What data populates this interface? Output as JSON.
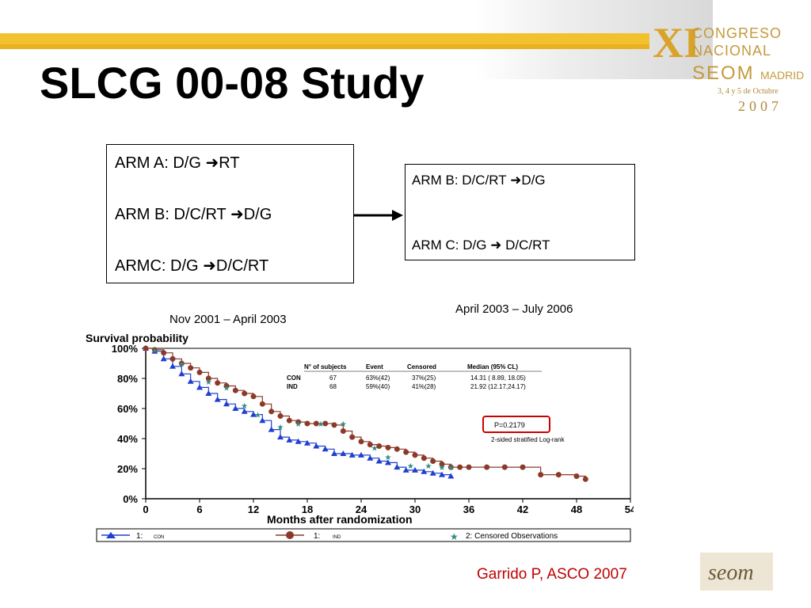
{
  "slide": {
    "title": "SLCG 00-08 Study",
    "citation": "Garrido P, ASCO  2007",
    "congress_logo": {
      "numeral": "XI",
      "line1": "CONGRESO",
      "line2": "NACIONAL",
      "line3": "SEOM",
      "line3b": "MADRID",
      "line4": "3, 4 y 5 de Octubre",
      "line5": "2007"
    },
    "seom_logo": "seom"
  },
  "arms_box1": {
    "arm_a": "ARM A: D/G ",
    "arm_a_end": "RT",
    "arm_b": "ARM B: D/C/RT ",
    "arm_b_end": "D/G",
    "arm_c": "ARMC: D/G ",
    "arm_c_end": "D/C/RT"
  },
  "arms_box2": {
    "arm_b": "ARM B: D/C/RT ",
    "arm_b_end": "D/G",
    "arm_c": "ARM C: D/G ",
    "arm_c_end": " D/C/RT"
  },
  "periods": {
    "first": "Nov 2001 – April 2003",
    "second": "April 2003 – July 2006"
  },
  "chart_data": {
    "type": "line",
    "title": "Survival probability",
    "xlabel": "Months after randomization",
    "ylabel": "Survival probability",
    "xlim": [
      0,
      54
    ],
    "ylim": [
      0,
      100
    ],
    "x_ticks": [
      "0",
      "6",
      "12",
      "18",
      "24",
      "30",
      "36",
      "42",
      "48",
      "54"
    ],
    "y_ticks": [
      "0%",
      "20%",
      "40%",
      "60%",
      "80%",
      "100%"
    ],
    "grid": false,
    "colors": {
      "con": "#1f3fd0",
      "ind": "#8b3a2a",
      "censored": "#2e8b80",
      "pvalue_box": "#cc0000"
    },
    "series": [
      {
        "name": "CON",
        "marker": "triangle",
        "x": [
          0,
          1,
          2,
          3,
          4,
          5,
          6,
          7,
          8,
          9,
          10,
          11,
          12,
          13,
          14,
          15,
          16,
          17,
          18,
          19,
          20,
          21,
          22,
          23,
          24,
          25,
          26,
          27,
          28,
          29,
          30,
          31,
          32,
          33,
          34
        ],
        "y": [
          100,
          98,
          93,
          88,
          83,
          78,
          74,
          70,
          66,
          63,
          60,
          58,
          56,
          52,
          46,
          41,
          39,
          38,
          37,
          35,
          33,
          30,
          30,
          29,
          29,
          27,
          25,
          24,
          21,
          19,
          19,
          18,
          17,
          16,
          15
        ]
      },
      {
        "name": "IND",
        "marker": "circle",
        "x": [
          0,
          1,
          2,
          3,
          4,
          5,
          6,
          7,
          8,
          9,
          10,
          11,
          12,
          13,
          14,
          15,
          16,
          17,
          18,
          19,
          20,
          21,
          22,
          23,
          24,
          25,
          26,
          27,
          28,
          29,
          30,
          31,
          32,
          33,
          34,
          35,
          36,
          38,
          40,
          42,
          44,
          46,
          48,
          49
        ],
        "y": [
          100,
          99,
          97,
          93,
          90,
          87,
          84,
          80,
          77,
          75,
          72,
          70,
          68,
          63,
          58,
          55,
          52,
          51,
          50,
          50,
          50,
          49,
          45,
          41,
          38,
          36,
          35,
          34,
          33,
          31,
          29,
          27,
          25,
          23,
          21,
          21,
          21,
          21,
          21,
          21,
          16,
          16,
          15,
          13
        ]
      }
    ],
    "censored_points": {
      "name": "2: Censored Observations",
      "x": [
        1,
        4,
        7,
        9,
        11,
        12.5,
        15,
        17,
        19.5,
        22,
        25.5,
        27,
        29.5,
        31.5,
        33,
        34
      ],
      "y": [
        99,
        90,
        78,
        74,
        62,
        56,
        48,
        50,
        50,
        50,
        34,
        28,
        22,
        22,
        21,
        21
      ]
    },
    "stats_table": {
      "headers": [
        "N° of subjects",
        "Event",
        "Censored",
        "Median (95% CL)"
      ],
      "rows": [
        {
          "group": "CON",
          "n": "67",
          "event": "63%(42)",
          "censored": "37%(25)",
          "median": "14.31 ( 8.89, 18.05)"
        },
        {
          "group": "IND",
          "n": "68",
          "event": "59%(40)",
          "censored": "41%(28)",
          "median": "21.92 (12.17,24.17)"
        }
      ]
    },
    "pvalue": "P=0.2179",
    "test_label": "2-sided stratified Log-rank",
    "legend": [
      {
        "label": "1:",
        "tag": "CON",
        "marker": "triangle"
      },
      {
        "label": "1:",
        "tag": "IND",
        "marker": "circle"
      },
      {
        "label": "2: Censored Observations",
        "tag": "",
        "marker": "star"
      }
    ],
    "legend_position": "bottom"
  }
}
